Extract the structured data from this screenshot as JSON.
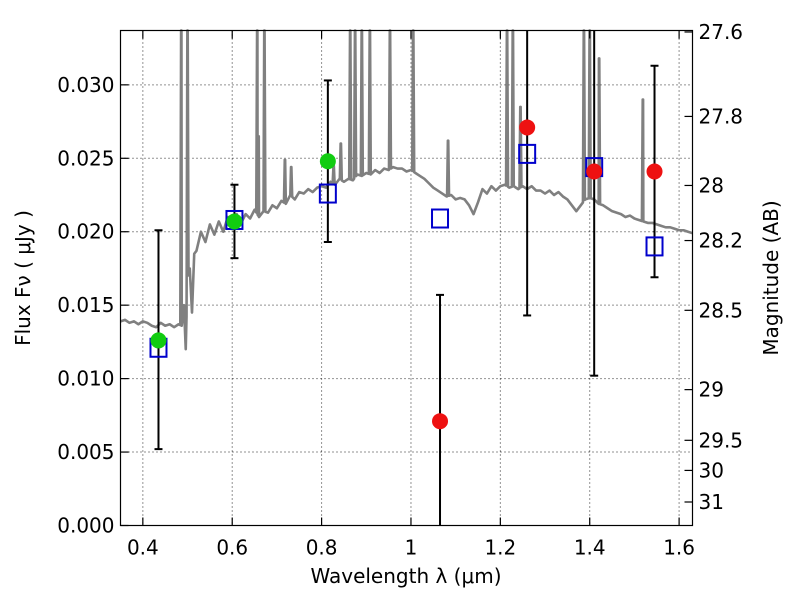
{
  "chart_data": {
    "type": "scatter",
    "xlabel": "Wavelength  λ (μm)",
    "ylabel": "Flux  Fν  ( μJy )",
    "ylabel_right": "Magnitude (AB)",
    "xlim": [
      0.35,
      1.63
    ],
    "ylim": [
      0.0,
      0.0337
    ],
    "x_ticks": [
      0.4,
      0.6,
      0.8,
      1.0,
      1.2,
      1.4,
      1.6
    ],
    "x_tick_labels": [
      "0.4",
      "0.6",
      "0.8",
      "1",
      "1.2",
      "1.4",
      "1.6"
    ],
    "y_ticks": [
      0.0,
      0.005,
      0.01,
      0.015,
      0.02,
      0.025,
      0.03
    ],
    "y_tick_labels": [
      "0.000",
      "0.005",
      "0.010",
      "0.015",
      "0.020",
      "0.025",
      "0.030"
    ],
    "right_ticks": [
      {
        "label": "27.6",
        "flux": 0.0336
      },
      {
        "label": "27.8",
        "flux": 0.02785
      },
      {
        "label": "28",
        "flux": 0.02315
      },
      {
        "label": "28.2",
        "flux": 0.0194
      },
      {
        "label": "28.5",
        "flux": 0.01465
      },
      {
        "label": "29",
        "flux": 0.00925
      },
      {
        "label": "29.5",
        "flux": 0.0058
      },
      {
        "label": "30",
        "flux": 0.00375
      },
      {
        "label": "31",
        "flux": 0.0016
      }
    ],
    "grid": true,
    "colors": {
      "spectrum": "#808080",
      "detection": "#11cc11",
      "upper_limit": "#ee1111",
      "model": "#0000cc",
      "errorbar": "#000000"
    },
    "series": [
      {
        "kind": "observed",
        "points": [
          {
            "x": 0.435,
            "y": 0.0126,
            "yerr_low": 0.0074,
            "yerr_high": 0.0075,
            "status": "detection"
          },
          {
            "x": 0.605,
            "y": 0.0207,
            "yerr_low": 0.0025,
            "yerr_high": 0.0025,
            "status": "detection"
          },
          {
            "x": 0.814,
            "y": 0.0248,
            "yerr_low": 0.0055,
            "yerr_high": 0.0055,
            "status": "detection"
          },
          {
            "x": 1.065,
            "y": 0.0071,
            "yerr_low": 0.0071,
            "yerr_high": 0.0086,
            "status": "upper_limit"
          },
          {
            "x": 1.26,
            "y": 0.0271,
            "yerr_low": 0.0128,
            "yerr_high": 0.007,
            "status": "upper_limit"
          },
          {
            "x": 1.41,
            "y": 0.0241,
            "yerr_low": 0.0139,
            "yerr_high": 0.01,
            "status": "upper_limit"
          },
          {
            "x": 1.545,
            "y": 0.0241,
            "yerr_low": 0.0072,
            "yerr_high": 0.0072,
            "status": "upper_limit"
          }
        ]
      },
      {
        "kind": "model_photometry",
        "points": [
          {
            "x": 0.435,
            "y": 0.0121
          },
          {
            "x": 0.605,
            "y": 0.0208
          },
          {
            "x": 0.814,
            "y": 0.0226
          },
          {
            "x": 1.065,
            "y": 0.0209
          },
          {
            "x": 1.26,
            "y": 0.0253
          },
          {
            "x": 1.41,
            "y": 0.0244
          },
          {
            "x": 1.545,
            "y": 0.019
          }
        ]
      },
      {
        "kind": "model_spectrum",
        "points": [
          [
            0.35,
            0.0139
          ],
          [
            0.36,
            0.014
          ],
          [
            0.37,
            0.0138
          ],
          [
            0.38,
            0.0139
          ],
          [
            0.39,
            0.0137
          ],
          [
            0.4,
            0.0139
          ],
          [
            0.41,
            0.0138
          ],
          [
            0.42,
            0.0136
          ],
          [
            0.43,
            0.0135
          ],
          [
            0.44,
            0.0138
          ],
          [
            0.45,
            0.0136
          ],
          [
            0.46,
            0.0137
          ],
          [
            0.47,
            0.0135
          ],
          [
            0.48,
            0.0137
          ],
          [
            0.487,
            0.0136
          ],
          [
            0.492,
            0.015
          ],
          [
            0.496,
            0.012
          ],
          [
            0.5,
            0.017
          ],
          [
            0.505,
            0.0175
          ],
          [
            0.51,
            0.0145
          ],
          [
            0.515,
            0.0185
          ],
          [
            0.52,
            0.0187
          ],
          [
            0.53,
            0.02
          ],
          [
            0.54,
            0.0193
          ],
          [
            0.55,
            0.0205
          ],
          [
            0.56,
            0.0198
          ],
          [
            0.57,
            0.0207
          ],
          [
            0.58,
            0.02
          ],
          [
            0.59,
            0.021
          ],
          [
            0.6,
            0.0205
          ],
          [
            0.61,
            0.0212
          ],
          [
            0.62,
            0.0206
          ],
          [
            0.63,
            0.0212
          ],
          [
            0.64,
            0.0209
          ],
          [
            0.65,
            0.0215
          ],
          [
            0.66,
            0.021
          ],
          [
            0.67,
            0.0214
          ],
          [
            0.68,
            0.0213
          ],
          [
            0.69,
            0.0218
          ],
          [
            0.7,
            0.0216
          ],
          [
            0.71,
            0.0221
          ],
          [
            0.72,
            0.0219
          ],
          [
            0.73,
            0.0225
          ],
          [
            0.74,
            0.0222
          ],
          [
            0.75,
            0.0227
          ],
          [
            0.76,
            0.0226
          ],
          [
            0.77,
            0.0229
          ],
          [
            0.78,
            0.0227
          ],
          [
            0.79,
            0.023
          ],
          [
            0.8,
            0.0231
          ],
          [
            0.81,
            0.023
          ],
          [
            0.82,
            0.0234
          ],
          [
            0.83,
            0.0232
          ],
          [
            0.84,
            0.0236
          ],
          [
            0.85,
            0.0234
          ],
          [
            0.86,
            0.0236
          ],
          [
            0.87,
            0.0235
          ],
          [
            0.88,
            0.0239
          ],
          [
            0.89,
            0.0238
          ],
          [
            0.9,
            0.024
          ],
          [
            0.91,
            0.0239
          ],
          [
            0.92,
            0.0242
          ],
          [
            0.93,
            0.024
          ],
          [
            0.94,
            0.0243
          ],
          [
            0.95,
            0.0242
          ],
          [
            0.96,
            0.0244
          ],
          [
            0.97,
            0.0243
          ],
          [
            0.98,
            0.0243
          ],
          [
            0.99,
            0.0241
          ],
          [
            1.0,
            0.0242
          ],
          [
            1.01,
            0.024
          ],
          [
            1.02,
            0.0238
          ],
          [
            1.03,
            0.0236
          ],
          [
            1.04,
            0.0233
          ],
          [
            1.05,
            0.023
          ],
          [
            1.06,
            0.0228
          ],
          [
            1.07,
            0.0226
          ],
          [
            1.08,
            0.0224
          ],
          [
            1.09,
            0.0225
          ],
          [
            1.1,
            0.0222
          ],
          [
            1.11,
            0.0223
          ],
          [
            1.12,
            0.0222
          ],
          [
            1.13,
            0.0218
          ],
          [
            1.14,
            0.0212
          ],
          [
            1.15,
            0.022
          ],
          [
            1.16,
            0.0229
          ],
          [
            1.17,
            0.0226
          ],
          [
            1.18,
            0.0231
          ],
          [
            1.19,
            0.0228
          ],
          [
            1.2,
            0.0231
          ],
          [
            1.21,
            0.0232
          ],
          [
            1.22,
            0.023
          ],
          [
            1.23,
            0.0231
          ],
          [
            1.24,
            0.0229
          ],
          [
            1.25,
            0.0231
          ],
          [
            1.26,
            0.0229
          ],
          [
            1.27,
            0.0231
          ],
          [
            1.28,
            0.0228
          ],
          [
            1.29,
            0.0228
          ],
          [
            1.3,
            0.0226
          ],
          [
            1.31,
            0.0228
          ],
          [
            1.32,
            0.0225
          ],
          [
            1.33,
            0.0227
          ],
          [
            1.34,
            0.0224
          ],
          [
            1.35,
            0.0222
          ],
          [
            1.36,
            0.0218
          ],
          [
            1.37,
            0.0214
          ],
          [
            1.38,
            0.0218
          ],
          [
            1.39,
            0.0222
          ],
          [
            1.4,
            0.0223
          ],
          [
            1.41,
            0.0222
          ],
          [
            1.42,
            0.0219
          ],
          [
            1.43,
            0.0218
          ],
          [
            1.44,
            0.0216
          ],
          [
            1.45,
            0.0214
          ],
          [
            1.46,
            0.0213
          ],
          [
            1.47,
            0.0212
          ],
          [
            1.48,
            0.021
          ],
          [
            1.49,
            0.0211
          ],
          [
            1.5,
            0.0209
          ],
          [
            1.51,
            0.0208
          ],
          [
            1.52,
            0.0207
          ],
          [
            1.53,
            0.0206
          ],
          [
            1.54,
            0.0206
          ],
          [
            1.55,
            0.0205
          ],
          [
            1.56,
            0.0204
          ],
          [
            1.57,
            0.0203
          ],
          [
            1.58,
            0.0203
          ],
          [
            1.59,
            0.0202
          ],
          [
            1.6,
            0.0201
          ],
          [
            1.61,
            0.0201
          ],
          [
            1.62,
            0.02
          ],
          [
            1.63,
            0.0199
          ]
        ],
        "emission_lines": [
          {
            "x": 0.486,
            "peak": 0.0337
          },
          {
            "x": 0.5,
            "peak": 0.0337
          },
          {
            "x": 0.656,
            "peak": 0.0337
          },
          {
            "x": 0.672,
            "peak": 0.0337
          },
          {
            "x": 0.659,
            "peak": 0.0265
          },
          {
            "x": 0.718,
            "peak": 0.0249
          },
          {
            "x": 0.732,
            "peak": 0.0244
          },
          {
            "x": 0.827,
            "peak": 0.0245
          },
          {
            "x": 0.843,
            "peak": 0.026
          },
          {
            "x": 0.864,
            "peak": 0.0337
          },
          {
            "x": 0.875,
            "peak": 0.0337
          },
          {
            "x": 0.89,
            "peak": 0.0337
          },
          {
            "x": 0.908,
            "peak": 0.0337
          },
          {
            "x": 0.953,
            "peak": 0.0337
          },
          {
            "x": 1.005,
            "peak": 0.0337
          },
          {
            "x": 1.083,
            "peak": 0.0262
          },
          {
            "x": 1.215,
            "peak": 0.0337
          },
          {
            "x": 1.228,
            "peak": 0.0337
          },
          {
            "x": 1.245,
            "peak": 0.0285
          },
          {
            "x": 1.387,
            "peak": 0.0337
          },
          {
            "x": 1.4,
            "peak": 0.0337
          },
          {
            "x": 1.421,
            "peak": 0.0318
          },
          {
            "x": 1.519,
            "peak": 0.029
          }
        ]
      }
    ]
  }
}
